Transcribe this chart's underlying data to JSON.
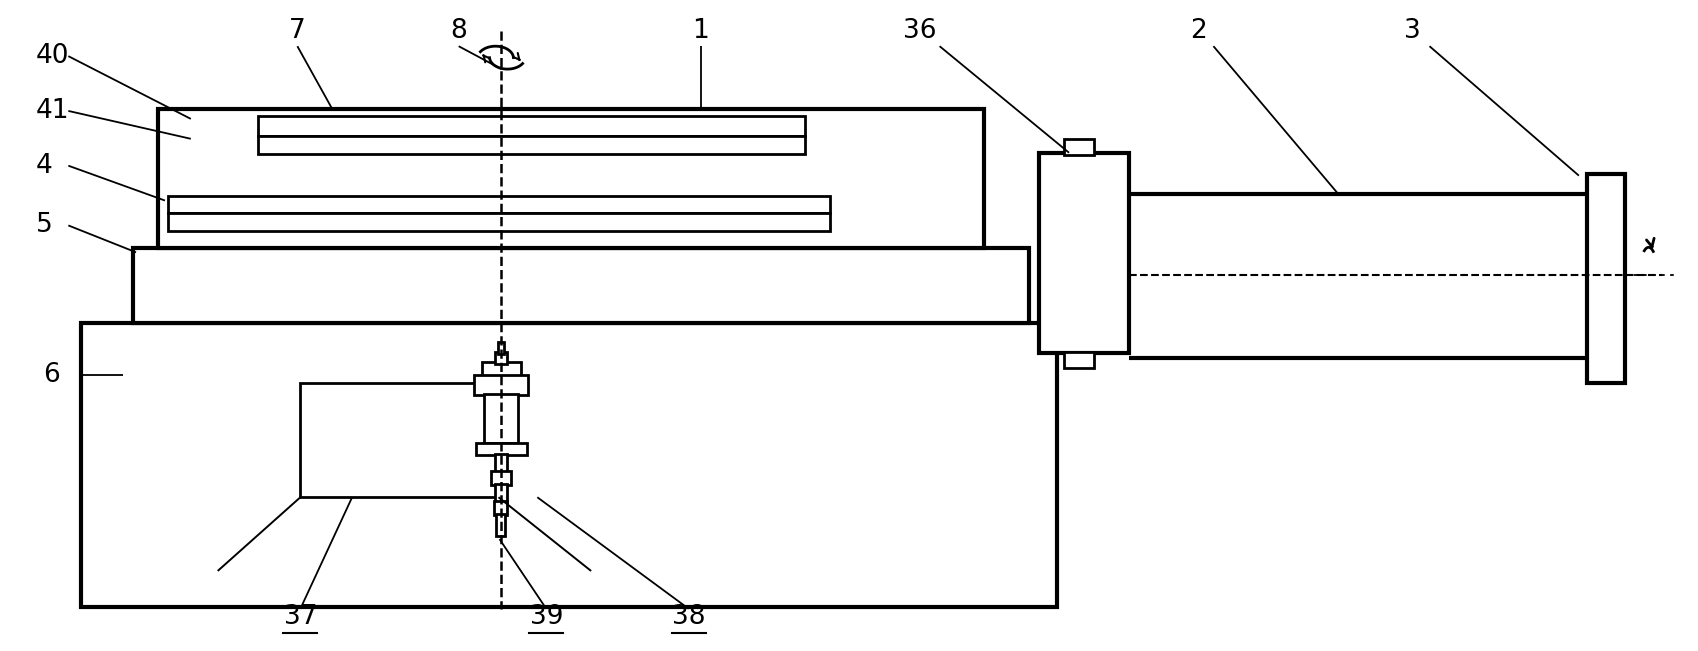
{
  "fig_width": 16.99,
  "fig_height": 6.51,
  "dpi": 100,
  "bg_color": "#ffffff",
  "lc": "#000000",
  "lw_thick": 3.0,
  "lw_med": 2.0,
  "lw_thin": 1.4,
  "lw_leader": 1.3,
  "label_fs": 19
}
